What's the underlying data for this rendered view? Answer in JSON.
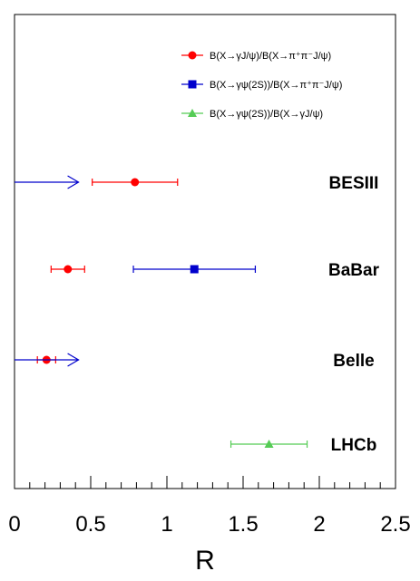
{
  "chart_data": {
    "type": "scatter",
    "title": "",
    "xlabel": "R",
    "ylabel": "",
    "xlim": [
      0,
      2.5
    ],
    "x_ticks": [
      "0",
      "0.5",
      "1",
      "1.5",
      "2",
      "2.5"
    ],
    "grid": false,
    "legend_position": "top-right",
    "series": [
      {
        "name": "B(X→γJ/ψ)/B(X→π⁺π⁻J/ψ)",
        "color": "#ff0000",
        "marker": "circle",
        "points": [
          {
            "experiment": "BESIII",
            "value": 0.79,
            "err_low": 0.28,
            "err_high": 0.28
          },
          {
            "experiment": "BaBar",
            "value": 0.35,
            "err_low": 0.11,
            "err_high": 0.11
          },
          {
            "experiment": "Belle",
            "value": 0.21,
            "err_low": 0.06,
            "err_high": 0.06
          }
        ]
      },
      {
        "name": "B(X→γψ(2S))/B(X→π⁺π⁻J/ψ)",
        "color": "#0000cc",
        "marker": "square",
        "points": [
          {
            "experiment": "BESIII",
            "upper_limit": 0.42
          },
          {
            "experiment": "BaBar",
            "value": 1.18,
            "err_low": 0.4,
            "err_high": 0.4
          },
          {
            "experiment": "Belle",
            "upper_limit": 0.42
          }
        ]
      },
      {
        "name": "B(X→γψ(2S))/B(X→γJ/ψ)",
        "color": "#55cc55",
        "marker": "triangle",
        "points": [
          {
            "experiment": "LHCb",
            "value": 1.67,
            "err_low": 0.25,
            "err_high": 0.25
          }
        ]
      }
    ],
    "experiments": [
      "BESIII",
      "BaBar",
      "Belle",
      "LHCb"
    ]
  }
}
